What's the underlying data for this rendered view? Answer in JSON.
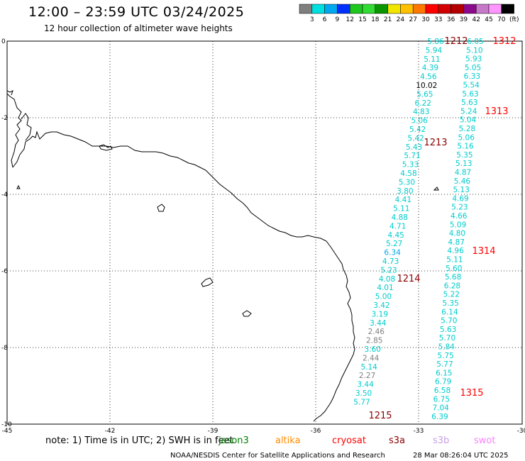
{
  "title": "12:00 – 23:59 UTC 03/24/2025",
  "subtitle": "12 hour collection of altimeter wave heights",
  "colorbar": {
    "colors": [
      "#7f7f7f",
      "#00e0e0",
      "#00a8f0",
      "#0030ff",
      "#1ec81e",
      "#32dc32",
      "#0a9600",
      "#f0e600",
      "#ffc000",
      "#ff7800",
      "#ff0000",
      "#d20000",
      "#b40000",
      "#8c0a8c",
      "#c878c8",
      "#ff96ff",
      "#000000"
    ],
    "labels": [
      "3",
      "6",
      "9",
      "12",
      "15",
      "18",
      "21",
      "24",
      "27",
      "30",
      "33",
      "36",
      "39",
      "42",
      "45",
      "70"
    ],
    "unit": "(ft)"
  },
  "axes": {
    "x_ticks": [
      "-45",
      "-42",
      "-39",
      "-36",
      "-33",
      "-30"
    ],
    "y_ticks": [
      "0",
      "-2",
      "-4",
      "-6",
      "-8",
      "-10"
    ]
  },
  "tracks": [
    {
      "values": [
        "5.86",
        "5.94",
        "5.11",
        "4.39",
        "4.56",
        "10.02",
        "5.65",
        "6.22",
        "4.83",
        "5.06",
        "5.42",
        "5.42",
        "5.43",
        "5.71",
        "5.33",
        "4.58",
        "5.30",
        "3.80",
        "4.41",
        "5.11",
        "4.88",
        "4.71",
        "4.45",
        "5.27",
        "6.34",
        "4.73",
        "5.23",
        "4.08",
        "4.01",
        "5.00",
        "3.42",
        "3.19",
        "3.44",
        "2.46",
        "2.85",
        "3.60",
        "2.44",
        "5.14",
        "2.27",
        "3.44",
        "3.50",
        "5.77"
      ],
      "colors": [
        "#00cccc",
        "#00cccc",
        "#00cccc",
        "#00cccc",
        "#00cccc",
        "#000000",
        "#00cccc",
        "#00cccc",
        "#00cccc",
        "#00cccc",
        "#00cccc",
        "#00cccc",
        "#00cccc",
        "#00cccc",
        "#00cccc",
        "#00cccc",
        "#00cccc",
        "#00cccc",
        "#00cccc",
        "#00cccc",
        "#00cccc",
        "#00cccc",
        "#00cccc",
        "#00cccc",
        "#00a8f0",
        "#00cccc",
        "#00cccc",
        "#00cccc",
        "#00cccc",
        "#00cccc",
        "#00cccc",
        "#00cccc",
        "#00cccc",
        "#7f7f7f",
        "#7f7f7f",
        "#00cccc",
        "#7f7f7f",
        "#00cccc",
        "#7f7f7f",
        "#00cccc",
        "#00cccc",
        "#00cccc"
      ]
    },
    {
      "values": [
        "6.05",
        "5.10",
        "5.93",
        "5.05",
        "6.33",
        "5.54",
        "5.63",
        "5.63",
        "5.24",
        "5.04",
        "5.28",
        "5.06",
        "5.16",
        "5.35",
        "5.13",
        "4.87",
        "5.46",
        "5.13",
        "4.69",
        "5.23",
        "4.66",
        "5.09",
        "4.80",
        "4.87",
        "4.96",
        "5.11",
        "5.60",
        "5.68",
        "6.28",
        "5.22",
        "5.35",
        "6.14",
        "5.70",
        "5.63",
        "5.70",
        "5.84",
        "5.75",
        "5.77",
        "6.15",
        "6.79",
        "6.58",
        "6.75",
        "7.04",
        "6.39"
      ],
      "colors": [
        "#00cccc",
        "#00cccc",
        "#00cccc",
        "#00cccc",
        "#00cccc",
        "#00cccc",
        "#00cccc",
        "#00cccc",
        "#00cccc",
        "#00cccc",
        "#00cccc",
        "#00cccc",
        "#00cccc",
        "#00cccc",
        "#00cccc",
        "#00cccc",
        "#00cccc",
        "#00cccc",
        "#00cccc",
        "#00cccc",
        "#00cccc",
        "#00cccc",
        "#00cccc",
        "#00cccc",
        "#00cccc",
        "#00cccc",
        "#00cccc",
        "#00cccc",
        "#00cccc",
        "#00cccc",
        "#00cccc",
        "#00cccc",
        "#00cccc",
        "#00cccc",
        "#00cccc",
        "#00cccc",
        "#00cccc",
        "#00cccc",
        "#00cccc",
        "#00cccc",
        "#00cccc",
        "#00cccc",
        "#00cccc",
        "#00cccc"
      ]
    }
  ],
  "pass_times": [
    {
      "label": "1212",
      "color": "#8b0000"
    },
    {
      "label": "1312",
      "color": "#ff0000"
    },
    {
      "label": "1313",
      "color": "#ff0000"
    },
    {
      "label": "1213",
      "color": "#8b0000"
    },
    {
      "label": "1314",
      "color": "#ff0000"
    },
    {
      "label": "1214",
      "color": "#8b0000"
    },
    {
      "label": "1315",
      "color": "#ff0000"
    },
    {
      "label": "1215",
      "color": "#8b0000"
    }
  ],
  "note": "note: 1) Time is in UTC; 2) SWH is in feet",
  "satellites": [
    {
      "label": "jason3",
      "color": "#008000"
    },
    {
      "label": "altika",
      "color": "#ff8c00"
    },
    {
      "label": "cryosat",
      "color": "#ff0000"
    },
    {
      "label": "s3a",
      "color": "#8b0000"
    },
    {
      "label": "s3b",
      "color": "#c8a0e6"
    },
    {
      "label": "swot",
      "color": "#ff80ff"
    }
  ],
  "credit": "NOAA/NESDIS Center for Satellite Applications and Research",
  "timestamp": "28 Mar 08:26:04 UTC 2025"
}
